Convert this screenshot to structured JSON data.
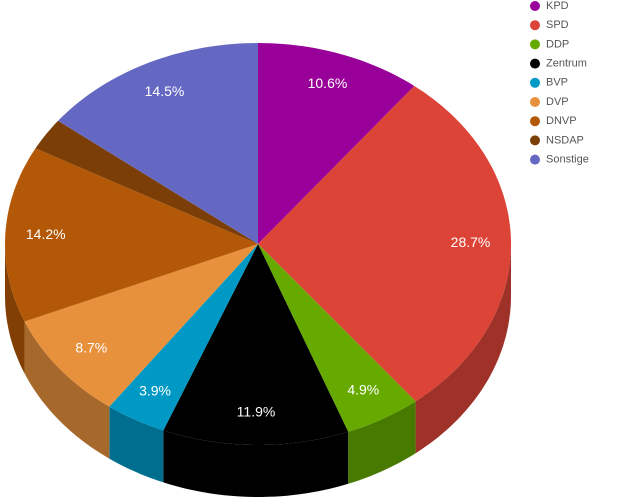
{
  "chart_data": {
    "type": "pie",
    "categories": [
      "KPD",
      "SPD",
      "DDP",
      "Zentrum",
      "BVP",
      "DVP",
      "DNVP",
      "NSDAP",
      "Sonstige"
    ],
    "values": [
      10.6,
      28.7,
      4.9,
      11.9,
      3.9,
      8.7,
      14.2,
      2.6,
      14.5
    ],
    "value_labels": [
      "10.6%",
      "28.7%",
      "4.9%",
      "11.9%",
      "3.9%",
      "8.7%",
      "14.2%",
      null,
      "14.5%"
    ],
    "colors": [
      "#990099",
      "#dc4437",
      "#66aa00",
      "#000000",
      "#0099c6",
      "#e8913c",
      "#b35806",
      "#7a3e06",
      "#6468c2"
    ]
  }
}
